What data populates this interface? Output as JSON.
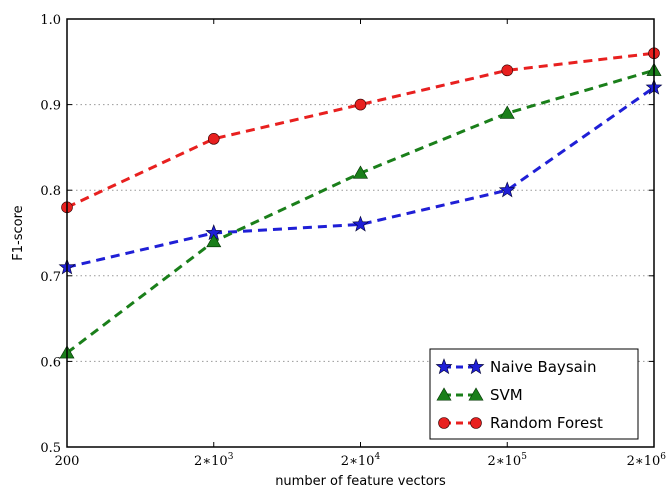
{
  "chart_data": {
    "type": "line",
    "title": "",
    "xlabel": "number of feature vectors",
    "ylabel": "F1-score",
    "ylim": [
      0.5,
      1.0
    ],
    "x": [
      "200",
      "2*10^3",
      "2*10^4",
      "2*10^5",
      "2*10^6"
    ],
    "x_tick_labels": [
      {
        "base": "200",
        "exp": ""
      },
      {
        "base": "2∗10",
        "exp": "3"
      },
      {
        "base": "2∗10",
        "exp": "4"
      },
      {
        "base": "2∗10",
        "exp": "5"
      },
      {
        "base": "2∗10",
        "exp": "6"
      }
    ],
    "y_ticks": [
      "0.5",
      "0.6",
      "0.7",
      "0.8",
      "0.9",
      "1.0"
    ],
    "grid": "horizontal dotted",
    "legend_position": "lower-right",
    "series": [
      {
        "name": "Naive Baysain",
        "values": [
          0.71,
          0.75,
          0.76,
          0.8,
          0.92
        ],
        "color": "#1f1fd6",
        "marker": "star"
      },
      {
        "name": "SVM",
        "values": [
          0.61,
          0.74,
          0.82,
          0.89,
          0.94
        ],
        "color": "#1a7f1a",
        "marker": "triangle"
      },
      {
        "name": "Random Forest",
        "values": [
          0.78,
          0.86,
          0.9,
          0.94,
          0.96
        ],
        "color": "#e8201f",
        "marker": "circle"
      }
    ]
  }
}
